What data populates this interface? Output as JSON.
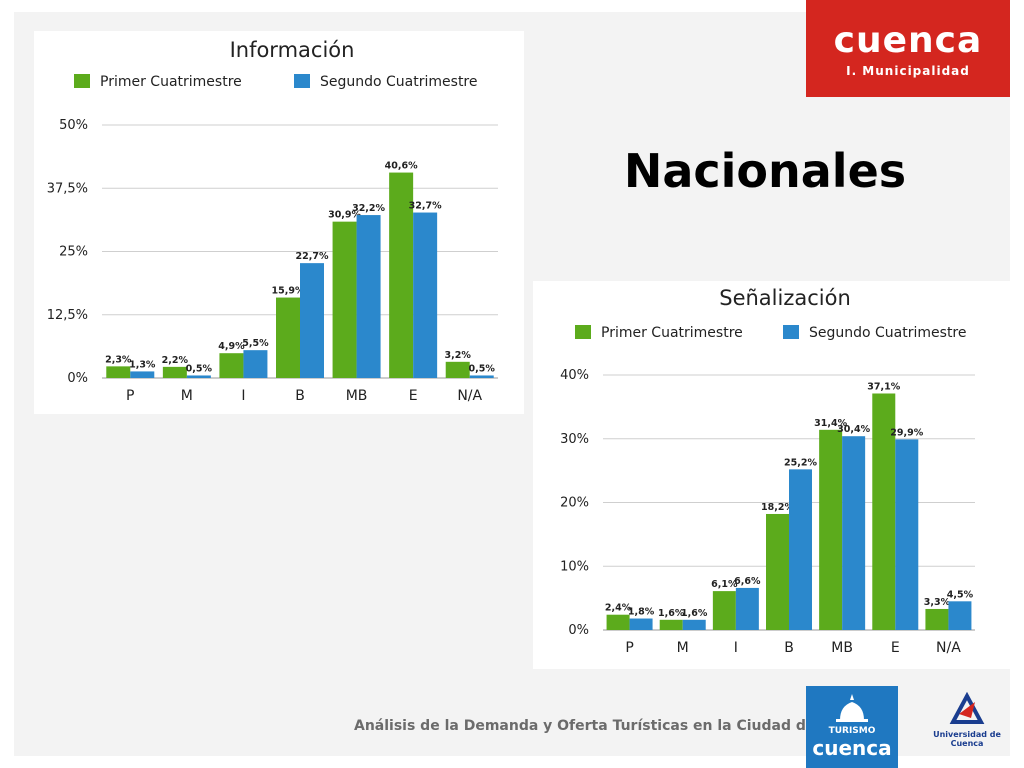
{
  "header": {
    "logo_main": "cuenca",
    "logo_sub": "I. Municipalidad",
    "title": "Nacionales"
  },
  "footer": {
    "text": "Análisis de la Demanda y Oferta Turísticas en la Ciudad de Cuenca",
    "turismo_logo_line1": "TURISMO",
    "turismo_logo_line2": "cuenca",
    "university_logo_label": "Universidad de Cuenca"
  },
  "colors": {
    "brand_red": "#d4261f",
    "series1": "#5cab1c",
    "series2": "#2b88cc",
    "turismo_blue": "#1f78c1"
  },
  "chart_data": [
    {
      "type": "bar",
      "title": "Información",
      "categories": [
        "P",
        "M",
        "I",
        "B",
        "MB",
        "E",
        "N/A"
      ],
      "series": [
        {
          "name": "Primer Cuatrimestre",
          "values": [
            2.3,
            2.2,
            4.9,
            15.9,
            30.9,
            40.6,
            3.2
          ]
        },
        {
          "name": "Segundo Cuatrimestre",
          "values": [
            1.3,
            0.5,
            5.5,
            22.7,
            32.2,
            32.7,
            0.5
          ]
        }
      ],
      "value_labels": [
        [
          "2,3%",
          "2,2%",
          "4,9%",
          "15,9%",
          "30,9%",
          "40,6%",
          "3,2%"
        ],
        [
          "1,3%",
          "0,5%",
          "5,5%",
          "22,7%",
          "32,2%",
          "32,7%",
          "0,5%"
        ]
      ],
      "yticks": [
        0,
        12.5,
        25,
        37.5,
        50
      ],
      "ytick_labels": [
        "0%",
        "12,5%",
        "25%",
        "37,5%",
        "50%"
      ],
      "ylim": [
        0,
        50
      ],
      "grid": true,
      "legend_position": "top"
    },
    {
      "type": "bar",
      "title": "Señalización",
      "categories": [
        "P",
        "M",
        "I",
        "B",
        "MB",
        "E",
        "N/A"
      ],
      "series": [
        {
          "name": "Primer Cuatrimestre",
          "values": [
            2.4,
            1.6,
            6.1,
            18.2,
            31.4,
            37.1,
            3.3
          ]
        },
        {
          "name": "Segundo Cuatrimestre",
          "values": [
            1.8,
            1.6,
            6.6,
            25.2,
            30.4,
            29.9,
            4.5
          ]
        }
      ],
      "value_labels": [
        [
          "2,4%",
          "1,6%",
          "6,1%",
          "18,2%",
          "31,4%",
          "37,1%",
          "3,3%"
        ],
        [
          "1,8%",
          "1,6%",
          "6,6%",
          "25,2%",
          "30,4%",
          "29,9%",
          "4,5%"
        ]
      ],
      "yticks": [
        0,
        10,
        20,
        30,
        40
      ],
      "ytick_labels": [
        "0%",
        "10%",
        "20%",
        "30%",
        "40%"
      ],
      "ylim": [
        0,
        40
      ],
      "grid": true,
      "legend_position": "top"
    }
  ]
}
